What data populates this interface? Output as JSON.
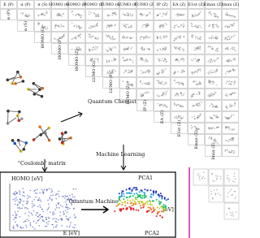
{
  "labels": [
    "E (P)",
    "α (P)",
    "α (S)",
    "HOMO (G)",
    "HOMO (P)",
    "HOMO (Z)",
    "LUMO (G)",
    "LUMO (P)",
    "LUMO (Z)",
    "IP (Z)",
    "EA (Z)",
    "E1st (Z)",
    "Emax (Z)",
    "Imax (Z)"
  ],
  "quantum_chemistry": "Quantum Chemistry",
  "coulomb_matrix": "\"Coulomb\" matrix",
  "machine_learning": "Machine Learning",
  "quantum_machine": "\"Quantum Machine\"",
  "homo_axis": "HOMO [eV]",
  "e_axis": "E [eV]",
  "pca1": "PCA1",
  "pca2": "PCA2",
  "ev_axis": "[eV]"
}
